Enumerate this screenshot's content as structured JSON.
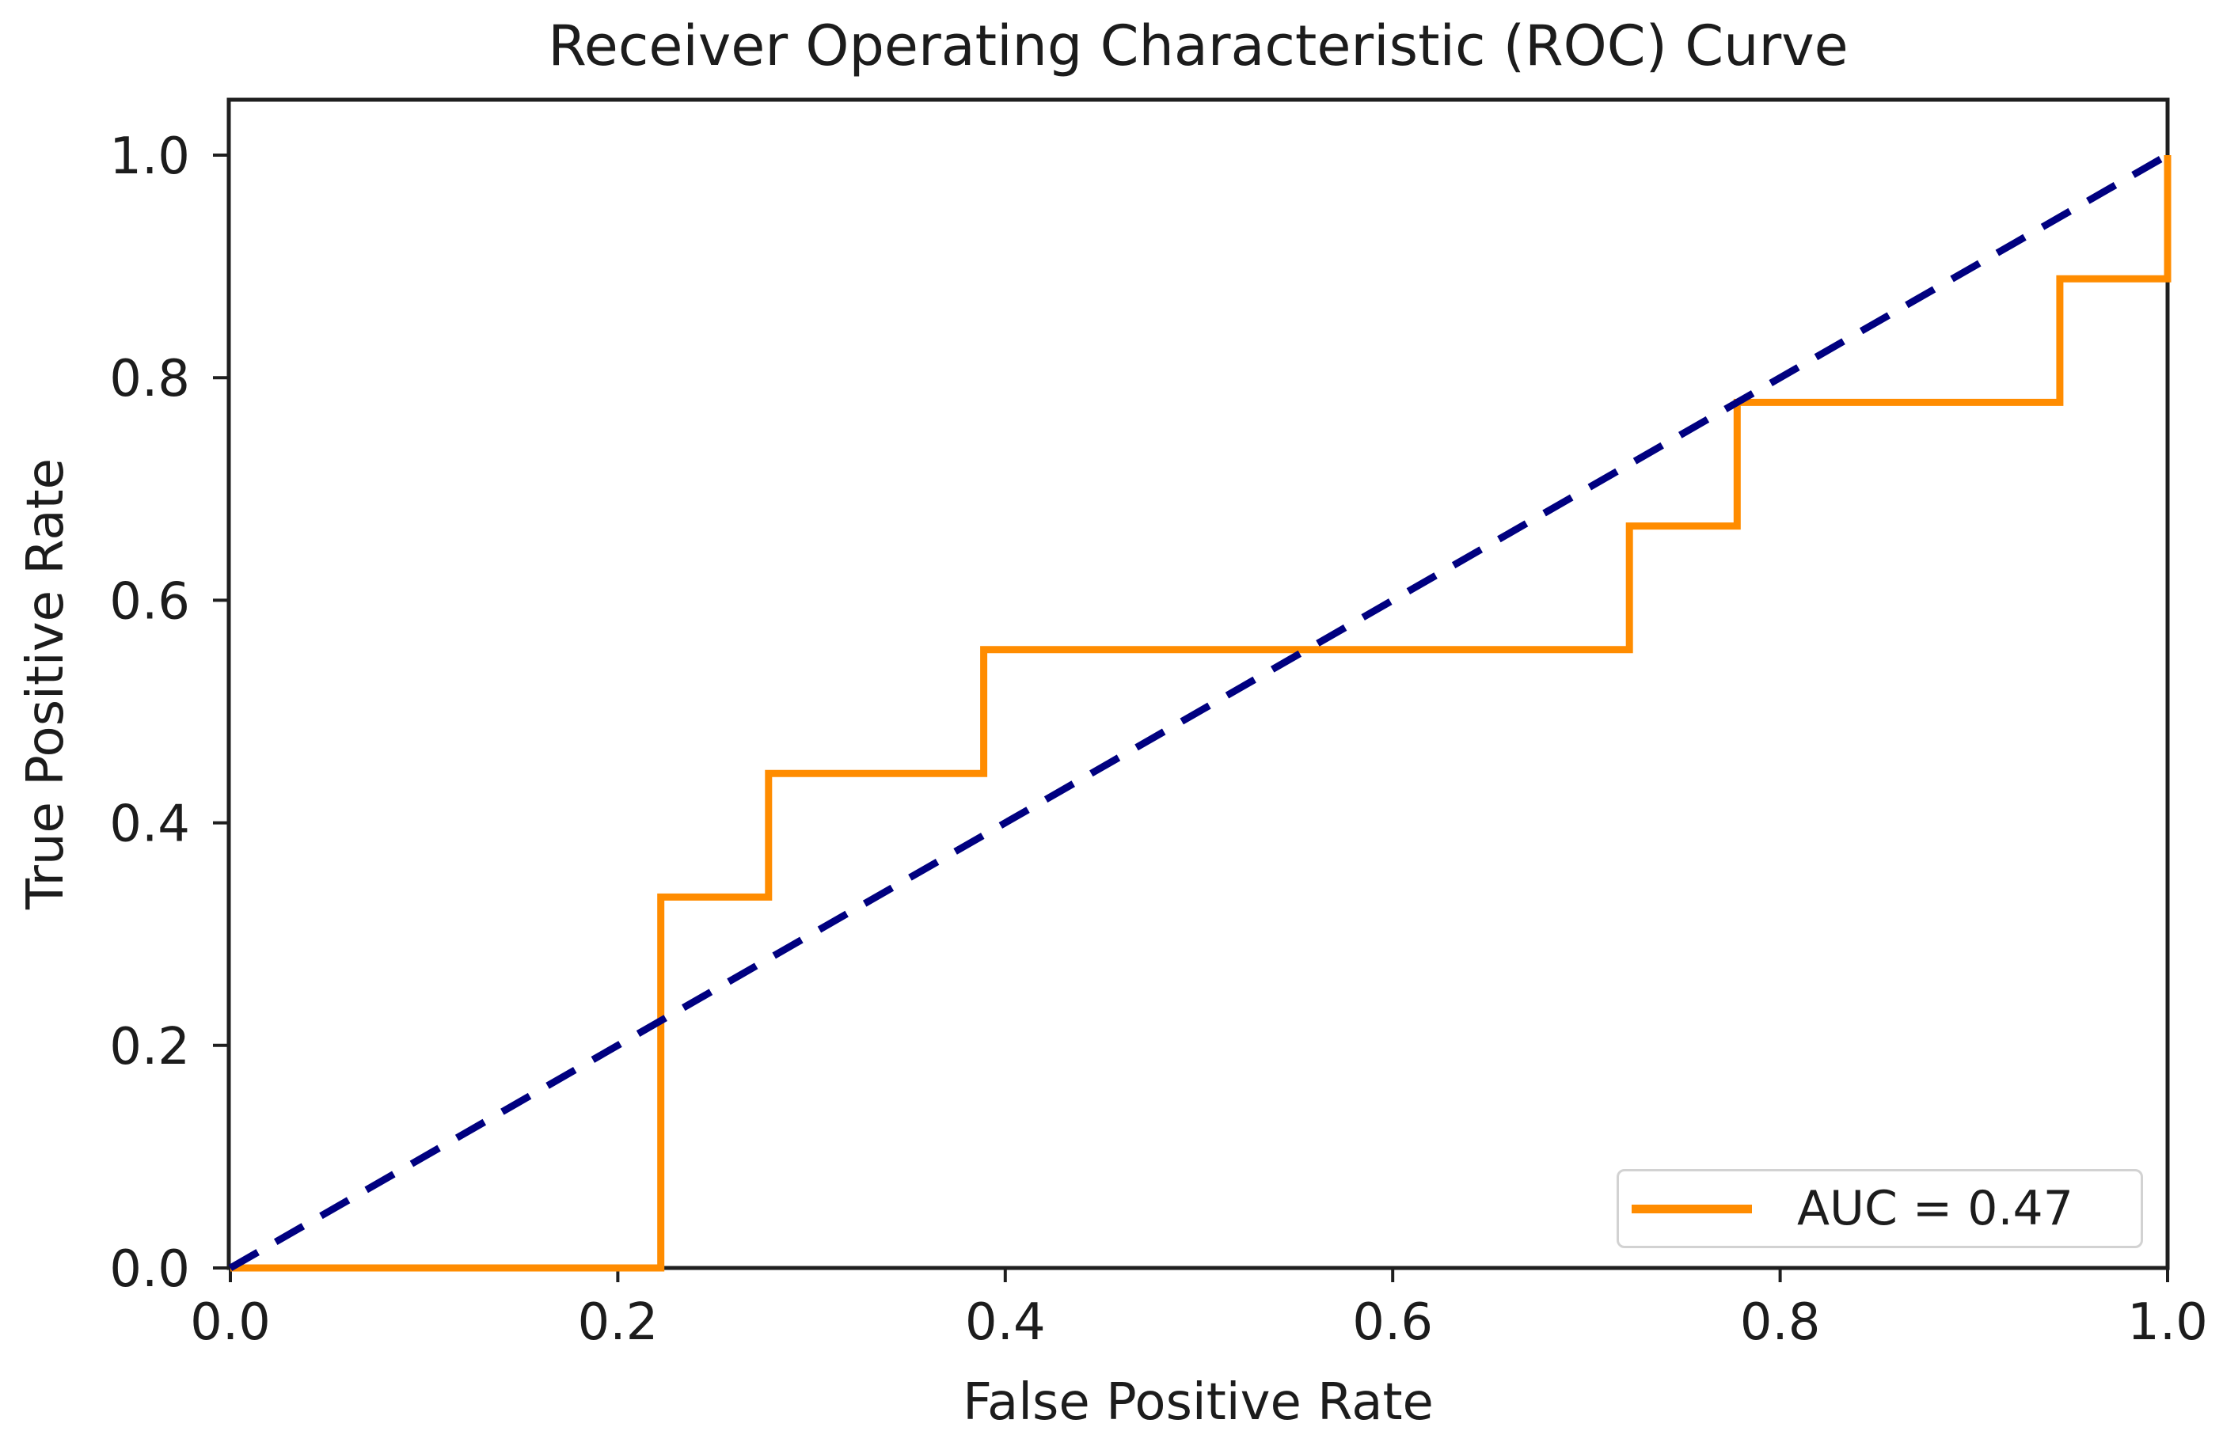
{
  "title": "Receiver Operating Characteristic (ROC) Curve",
  "x_axis": {
    "label": "False Positive Rate",
    "ticks": [
      {
        "v": 0.0,
        "label": "0.0"
      },
      {
        "v": 0.2,
        "label": "0.2"
      },
      {
        "v": 0.4,
        "label": "0.4"
      },
      {
        "v": 0.6,
        "label": "0.6"
      },
      {
        "v": 0.8,
        "label": "0.8"
      },
      {
        "v": 1.0,
        "label": "1.0"
      }
    ]
  },
  "y_axis": {
    "label": "True Positive Rate",
    "ticks": [
      {
        "v": 0.0,
        "label": "0.0"
      },
      {
        "v": 0.2,
        "label": "0.2"
      },
      {
        "v": 0.4,
        "label": "0.4"
      },
      {
        "v": 0.6,
        "label": "0.6"
      },
      {
        "v": 0.8,
        "label": "0.8"
      },
      {
        "v": 1.0,
        "label": "1.0"
      }
    ]
  },
  "legend": {
    "label": "AUC = 0.47",
    "position": "lower right"
  },
  "colors": {
    "roc_curve": "#FF8C00",
    "chance_line": "#000080",
    "axis": "#1f1f1f",
    "text": "#1c1c1c",
    "legend_border": "#d2d2d2",
    "background": "#ffffff"
  },
  "chart_data": {
    "type": "line",
    "title": "Receiver Operating Characteristic (ROC) Curve",
    "xlabel": "False Positive Rate",
    "ylabel": "True Positive Rate",
    "xlim": [
      0.0,
      1.0
    ],
    "ylim": [
      0.0,
      1.05
    ],
    "grid": false,
    "legend_position": "lower right",
    "auc": 0.47,
    "series": [
      {
        "name": "ROC curve (AUC = 0.47)",
        "style": "solid",
        "color": "#FF8C00",
        "x": [
          0.0,
          0.2222,
          0.2222,
          0.2778,
          0.2778,
          0.3889,
          0.3889,
          0.7222,
          0.7222,
          0.7778,
          0.7778,
          0.9444,
          0.9444,
          1.0,
          1.0
        ],
        "y": [
          0.0,
          0.0,
          0.3333,
          0.3333,
          0.4444,
          0.4444,
          0.5556,
          0.5556,
          0.6667,
          0.6667,
          0.7778,
          0.7778,
          0.8889,
          0.8889,
          1.0
        ]
      },
      {
        "name": "chance diagonal",
        "style": "dashed",
        "color": "#000080",
        "x": [
          0.0,
          1.0
        ],
        "y": [
          0.0,
          1.0
        ]
      }
    ]
  }
}
